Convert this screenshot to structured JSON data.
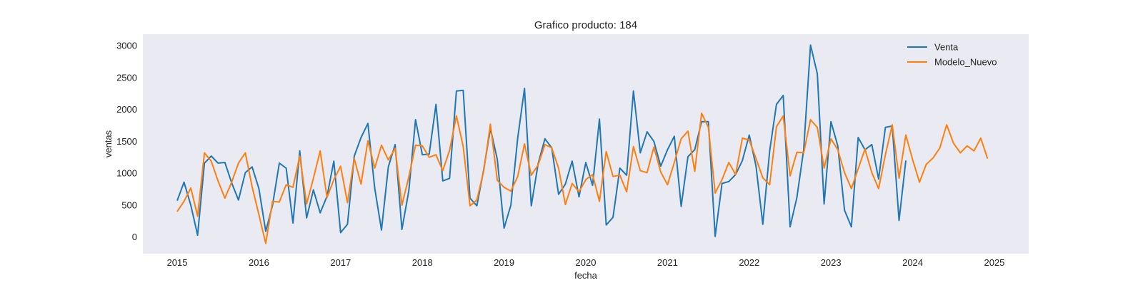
{
  "chart_data": {
    "type": "line",
    "title": "Grafico producto: 184",
    "xlabel": "fecha",
    "ylabel": "ventas",
    "xlim": [
      2014.58,
      2025.42
    ],
    "ylim": [
      -260,
      3180
    ],
    "x_ticks": [
      2015,
      2016,
      2017,
      2018,
      2019,
      2020,
      2021,
      2022,
      2023,
      2024,
      2025
    ],
    "y_ticks": [
      0,
      500,
      1000,
      1500,
      2000,
      2500,
      3000
    ],
    "grid": false,
    "legend": "top-right",
    "background": "#eaeaf2",
    "series": [
      {
        "name": "Venta",
        "color": "#1f77b4",
        "start": 2015.0,
        "step": 0.0833333,
        "values": [
          570,
          860,
          500,
          30,
          1160,
          1270,
          1160,
          1170,
          850,
          580,
          1010,
          1100,
          760,
          90,
          500,
          1160,
          1080,
          220,
          1350,
          300,
          740,
          380,
          640,
          1190,
          70,
          200,
          1270,
          1560,
          1780,
          770,
          110,
          1100,
          1450,
          120,
          720,
          1840,
          1290,
          1300,
          2080,
          880,
          920,
          2290,
          2300,
          610,
          490,
          1050,
          1700,
          1220,
          140,
          500,
          1550,
          2330,
          490,
          1150,
          1540,
          1400,
          670,
          830,
          1190,
          630,
          1170,
          810,
          1850,
          190,
          310,
          1080,
          970,
          2290,
          1320,
          1650,
          1500,
          1110,
          1370,
          1580,
          480,
          1260,
          1370,
          1810,
          1810,
          10,
          840,
          870,
          980,
          1200,
          1600,
          1110,
          200,
          1350,
          2080,
          2220,
          160,
          620,
          1370,
          3010,
          2560,
          520,
          1810,
          1430,
          420,
          160,
          1560,
          1370,
          1450,
          910,
          1720,
          1740,
          260,
          1200
        ]
      },
      {
        "name": "Modelo_Nuevo",
        "color": "#ff7f0e",
        "start": 2015.0,
        "step": 0.0833333,
        "values": [
          400,
          560,
          770,
          330,
          1320,
          1190,
          880,
          610,
          860,
          1160,
          1320,
          790,
          350,
          -100,
          560,
          550,
          820,
          780,
          1270,
          520,
          920,
          1350,
          620,
          900,
          1110,
          540,
          1230,
          830,
          1510,
          1080,
          1440,
          1210,
          1390,
          500,
          940,
          1440,
          1430,
          1250,
          1290,
          1040,
          1360,
          1900,
          1420,
          490,
          580,
          1030,
          1770,
          890,
          780,
          720,
          950,
          1460,
          970,
          1130,
          1450,
          1400,
          1080,
          510,
          840,
          710,
          900,
          980,
          560,
          1340,
          950,
          970,
          710,
          1420,
          1040,
          1010,
          1410,
          1020,
          820,
          1170,
          1540,
          1660,
          1030,
          1940,
          1720,
          690,
          900,
          1170,
          980,
          1550,
          1520,
          1230,
          930,
          820,
          1730,
          1900,
          960,
          1330,
          1320,
          1840,
          1720,
          1080,
          1540,
          1370,
          1010,
          760,
          1070,
          1380,
          1010,
          760,
          1290,
          1760,
          920,
          1600,
          1210,
          860,
          1140,
          1240,
          1400,
          1760,
          1470,
          1320,
          1430,
          1350,
          1550,
          1230
        ]
      }
    ]
  }
}
